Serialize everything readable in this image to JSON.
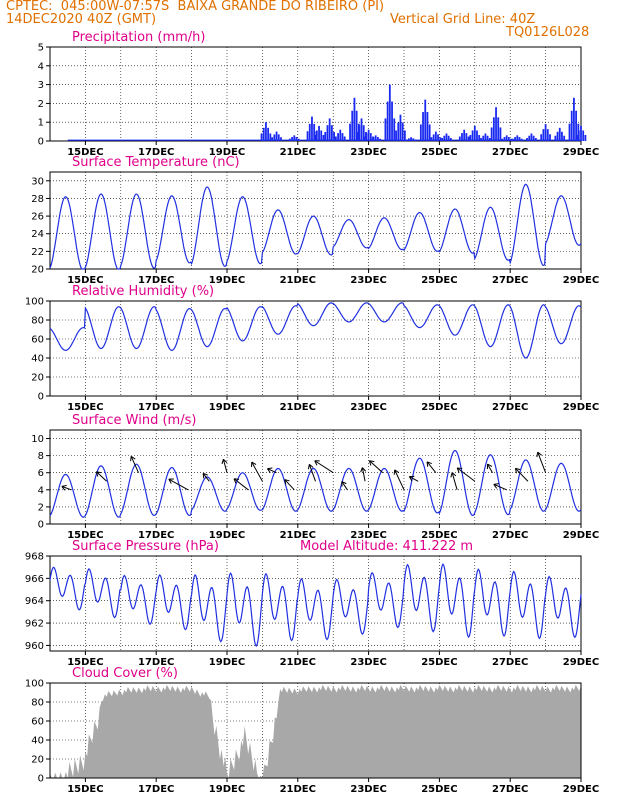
{
  "header": {
    "line1": "CPTEC:  045:00W-07:57S  BAIXA GRANDE DO RIBEIRO (PI)",
    "line2_left": "14DEC2020 40Z (GMT)",
    "line2_right": "Vertical Grid Line: 40Z",
    "line3_right": "TQ0126L028"
  },
  "colors": {
    "line": "#2030e0",
    "bar": "#1a2af0",
    "cloud": "#a8a8a8",
    "title": "#e0008a",
    "header": "#e07000"
  },
  "x_tick_labels": [
    "15DEC",
    "17DEC",
    "19DEC",
    "21DEC",
    "23DEC",
    "25DEC",
    "27DEC",
    "29DEC"
  ],
  "chart_data": [
    {
      "id": "precip",
      "type": "bar",
      "title": "Precipitation (mm/h)",
      "ylim": [
        0,
        5
      ],
      "yticks": [
        0,
        1,
        2,
        3,
        4,
        5
      ],
      "x_days": [
        20.1,
        20.4,
        20.9,
        21.4,
        21.6,
        21.9,
        22.2,
        22.6,
        22.8,
        23.0,
        23.2,
        23.6,
        23.9,
        24.2,
        24.6,
        24.9,
        25.2,
        25.7,
        26.0,
        26.3,
        26.6,
        26.9,
        27.2,
        27.6,
        28.0,
        28.4,
        28.8,
        29.0
      ],
      "values": [
        1.0,
        0.5,
        0.3,
        1.3,
        0.8,
        1.2,
        0.6,
        2.3,
        1.2,
        0.6,
        0.3,
        3.0,
        1.4,
        0.2,
        2.2,
        0.5,
        0.4,
        0.6,
        0.8,
        0.4,
        1.8,
        0.3,
        0.3,
        0.4,
        0.9,
        0.7,
        2.3,
        0.8
      ]
    },
    {
      "id": "temp",
      "type": "line",
      "title": "Surface Temperature (nC)",
      "ylim": [
        20,
        31
      ],
      "yticks": [
        20,
        22,
        24,
        26,
        28,
        30
      ],
      "amplitude": [
        4.2,
        4.3,
        4.2,
        3.8,
        4.5,
        3.8,
        2.5,
        2.2,
        1.6,
        1.8,
        2.2,
        2.5,
        3.0,
        4.6,
        2.8
      ],
      "mean": [
        24.0,
        24.2,
        24.3,
        24.5,
        24.8,
        24.4,
        24.2,
        23.8,
        24.0,
        24.0,
        24.2,
        24.3,
        24.0,
        25.0,
        25.5
      ]
    },
    {
      "id": "rh",
      "type": "line",
      "title": "Relative Humidity (%)",
      "ylim": [
        0,
        100
      ],
      "yticks": [
        0,
        20,
        40,
        60,
        80,
        100
      ],
      "amplitude": [
        12,
        22,
        22,
        22,
        20,
        18,
        15,
        12,
        10,
        10,
        12,
        16,
        22,
        28,
        20
      ],
      "mean": [
        60,
        72,
        72,
        70,
        72,
        76,
        80,
        86,
        88,
        88,
        84,
        80,
        74,
        68,
        75
      ]
    },
    {
      "id": "wind",
      "type": "line",
      "title": "Surface Wind (m/s)",
      "ylim": [
        0,
        11
      ],
      "yticks": [
        0,
        2,
        4,
        6,
        8,
        10
      ],
      "amplitude": [
        2.5,
        3.0,
        3.0,
        2.8,
        2.0,
        2.2,
        2.5,
        2.5,
        2.5,
        2.5,
        3.2,
        3.8,
        3.5,
        3.0,
        2.8
      ],
      "mean": [
        3.3,
        3.8,
        4.0,
        3.8,
        3.5,
        3.8,
        4.0,
        4.0,
        4.0,
        4.0,
        4.5,
        4.8,
        4.6,
        4.5,
        4.3
      ]
    },
    {
      "id": "pres",
      "type": "line",
      "title": "Surface Pressure (hPa)",
      "annotation": "Model Altitude: 411.222 m",
      "ylim": [
        959.5,
        968
      ],
      "yticks": [
        960,
        962,
        964,
        966,
        968
      ],
      "amplitude": [
        1.4,
        1.6,
        1.6,
        1.8,
        2.2,
        2.4,
        2.2,
        2.0,
        1.8,
        1.8,
        2.2,
        2.4,
        2.2,
        2.2,
        2.0
      ],
      "mean": [
        965.2,
        964.8,
        964.2,
        964.0,
        963.5,
        963.4,
        963.6,
        963.4,
        963.6,
        964.2,
        964.4,
        964.2,
        964.0,
        963.8,
        963.6
      ]
    },
    {
      "id": "cloud",
      "type": "bar",
      "title": "Cloud Cover (%)",
      "ylim": [
        0,
        100
      ],
      "yticks": [
        0,
        20,
        40,
        60,
        80,
        100
      ],
      "x_days": [
        14,
        14.5,
        15,
        15.5,
        16,
        16.5,
        17,
        17.5,
        18,
        18.5,
        19,
        19.5,
        20,
        20.5,
        21,
        21.5,
        22,
        22.5,
        23,
        23.5,
        24,
        24.5,
        25,
        25.5,
        26,
        26.5,
        27,
        27.5,
        28,
        28.5,
        29
      ],
      "values": [
        5,
        15,
        35,
        90,
        95,
        97,
        98,
        98,
        97,
        90,
        15,
        55,
        5,
        96,
        96,
        98,
        98,
        98,
        98,
        98,
        98,
        98,
        98,
        98,
        98,
        98,
        98,
        98,
        98,
        98,
        98
      ]
    }
  ]
}
